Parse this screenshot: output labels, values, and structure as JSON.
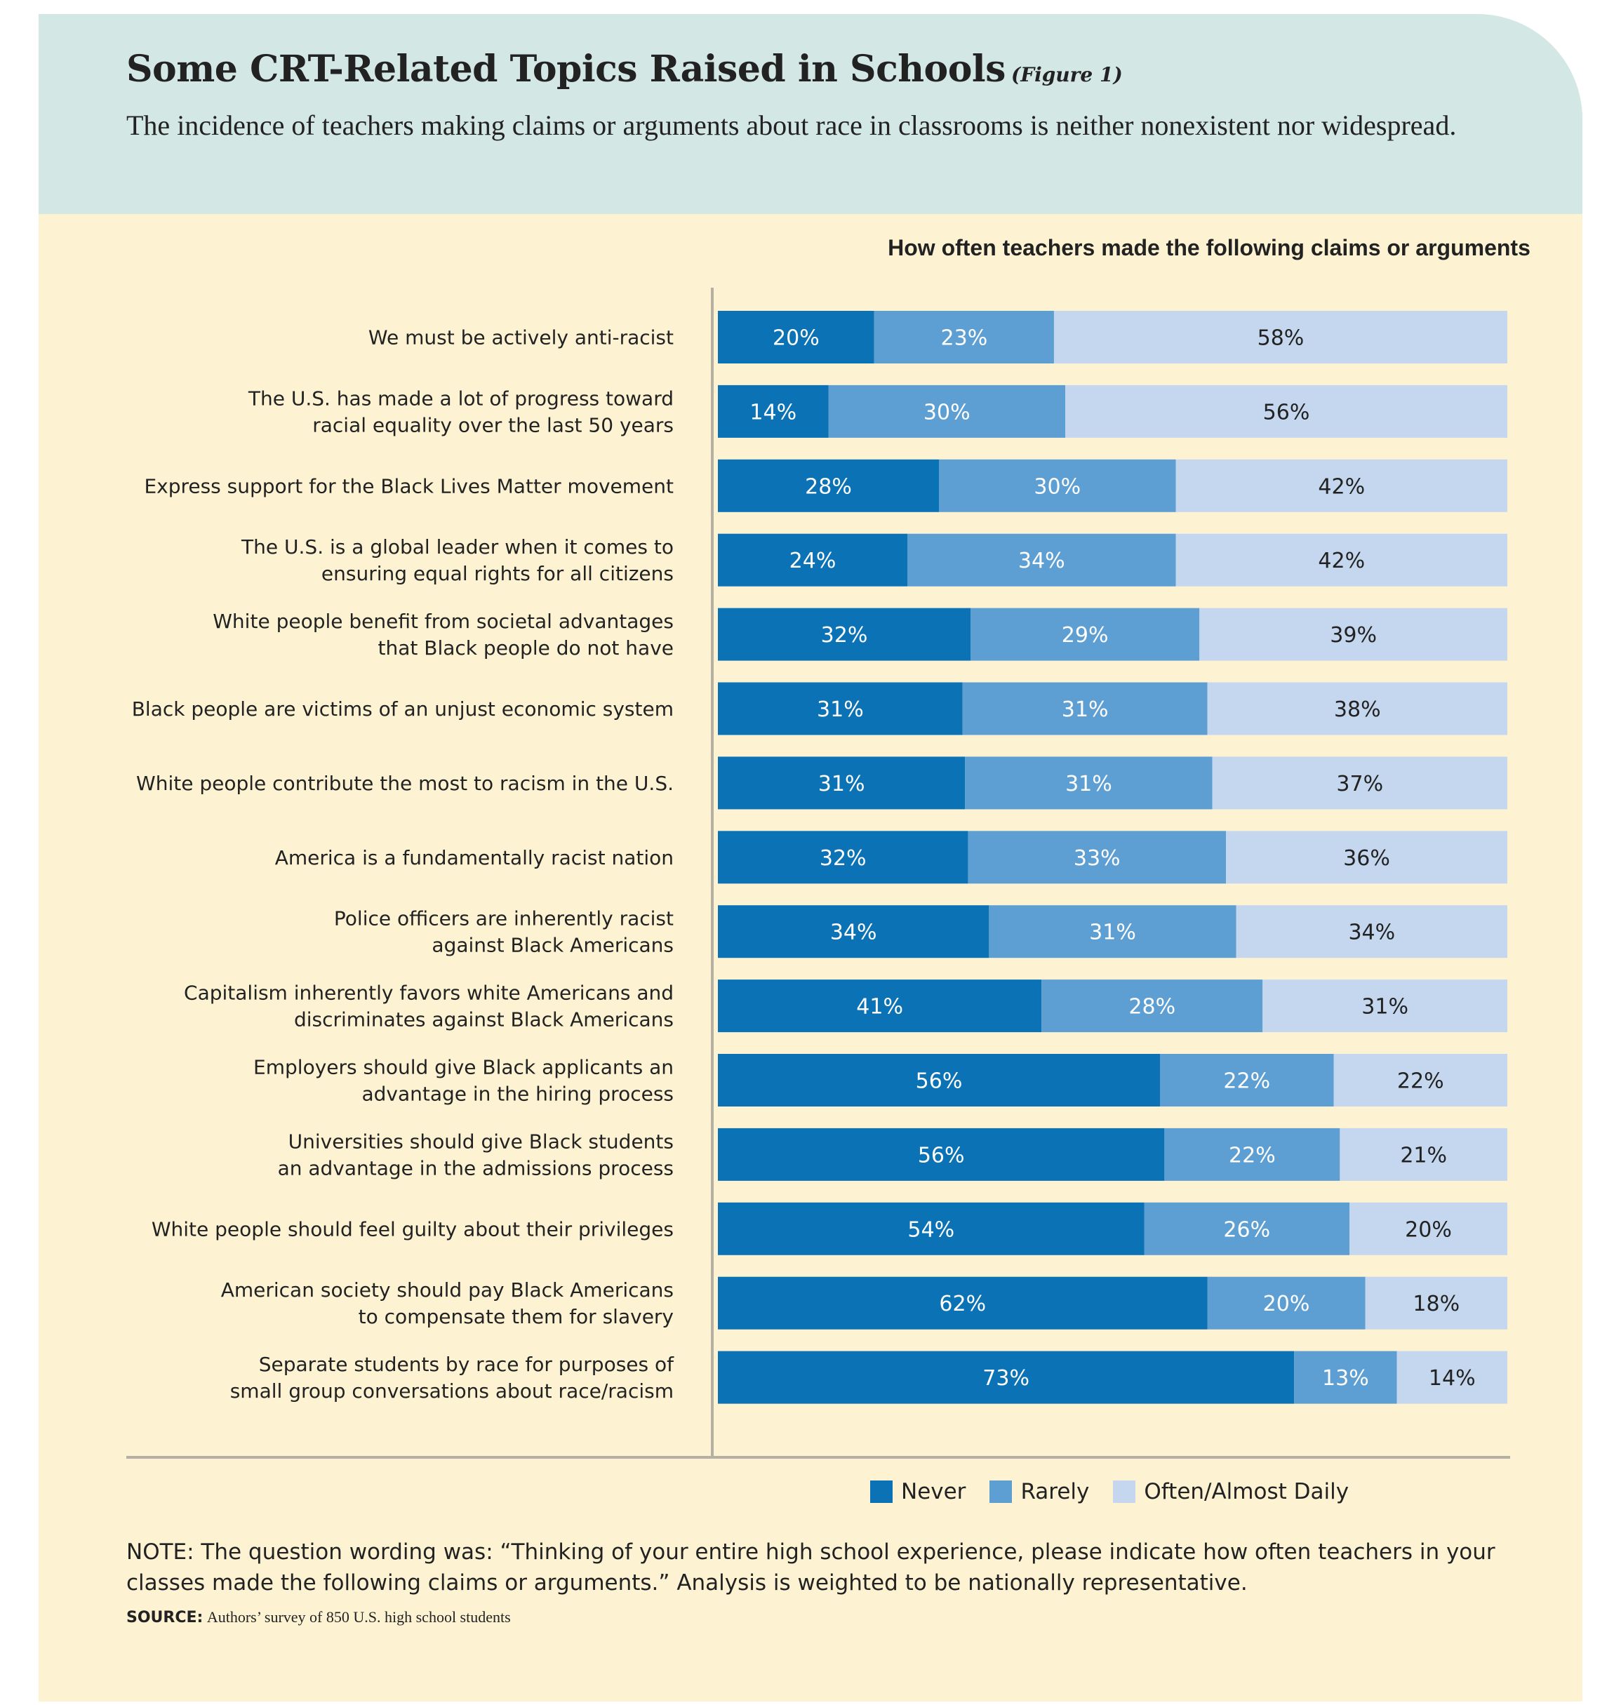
{
  "header": {
    "title": "Some CRT-Related Topics Raised in Schools",
    "figure_ref": "(Figure 1)",
    "subtitle": "The incidence of teachers making claims or arguments about race in classrooms is neither nonexistent nor widespread."
  },
  "chart_data": {
    "type": "bar",
    "orientation": "horizontal",
    "stacked": true,
    "title": "How often teachers made the following claims or arguments",
    "unit": "%",
    "categories": [
      [
        "We must be actively anti-racist"
      ],
      [
        "The U.S. has made a lot of progress toward",
        "racial equality over the last 50 years"
      ],
      [
        "Express support for the Black Lives Matter movement"
      ],
      [
        "The U.S. is a global leader when it comes to",
        "ensuring equal rights for all citizens"
      ],
      [
        "White people benefit from societal advantages",
        "that Black people do not have"
      ],
      [
        "Black people are victims of an unjust economic system"
      ],
      [
        "White people contribute the most to racism in the U.S."
      ],
      [
        "America is a fundamentally racist nation"
      ],
      [
        "Police officers are inherently racist",
        "against Black Americans"
      ],
      [
        "Capitalism inherently favors white Americans and",
        "discriminates against Black Americans"
      ],
      [
        "Employers should give Black applicants an",
        "advantage in the hiring process"
      ],
      [
        "Universities should give Black students",
        "an advantage in the admissions process"
      ],
      [
        "White people should feel guilty about their privileges"
      ],
      [
        "American society should pay Black Americans",
        "to compensate them for slavery"
      ],
      [
        "Separate students by race for purposes of",
        "small group conversations about race/racism"
      ]
    ],
    "series": [
      {
        "name": "Never",
        "color": "#0b72b5",
        "label_color": "#ffffff",
        "values": [
          20,
          14,
          28,
          24,
          32,
          31,
          31,
          32,
          34,
          41,
          56,
          56,
          54,
          62,
          73
        ]
      },
      {
        "name": "Rarely",
        "color": "#5e9fd3",
        "label_color": "#ffffff",
        "values": [
          23,
          30,
          30,
          34,
          29,
          31,
          31,
          33,
          31,
          28,
          22,
          22,
          26,
          20,
          13
        ]
      },
      {
        "name": "Often/Almost Daily",
        "color": "#c4d7ee",
        "label_color": "#222222",
        "values": [
          58,
          56,
          42,
          42,
          39,
          38,
          37,
          36,
          34,
          31,
          22,
          21,
          20,
          18,
          14
        ]
      }
    ],
    "legend_position": "bottom",
    "grid": false
  },
  "note": "NOTE: The question wording was: “Thinking of your entire high school experience, please indicate how often teachers in your classes made the following claims or arguments.” Analysis is weighted to be nationally representative.",
  "source": {
    "label": "SOURCE:",
    "text": "Authors’ survey of 850 U.S. high school students"
  }
}
